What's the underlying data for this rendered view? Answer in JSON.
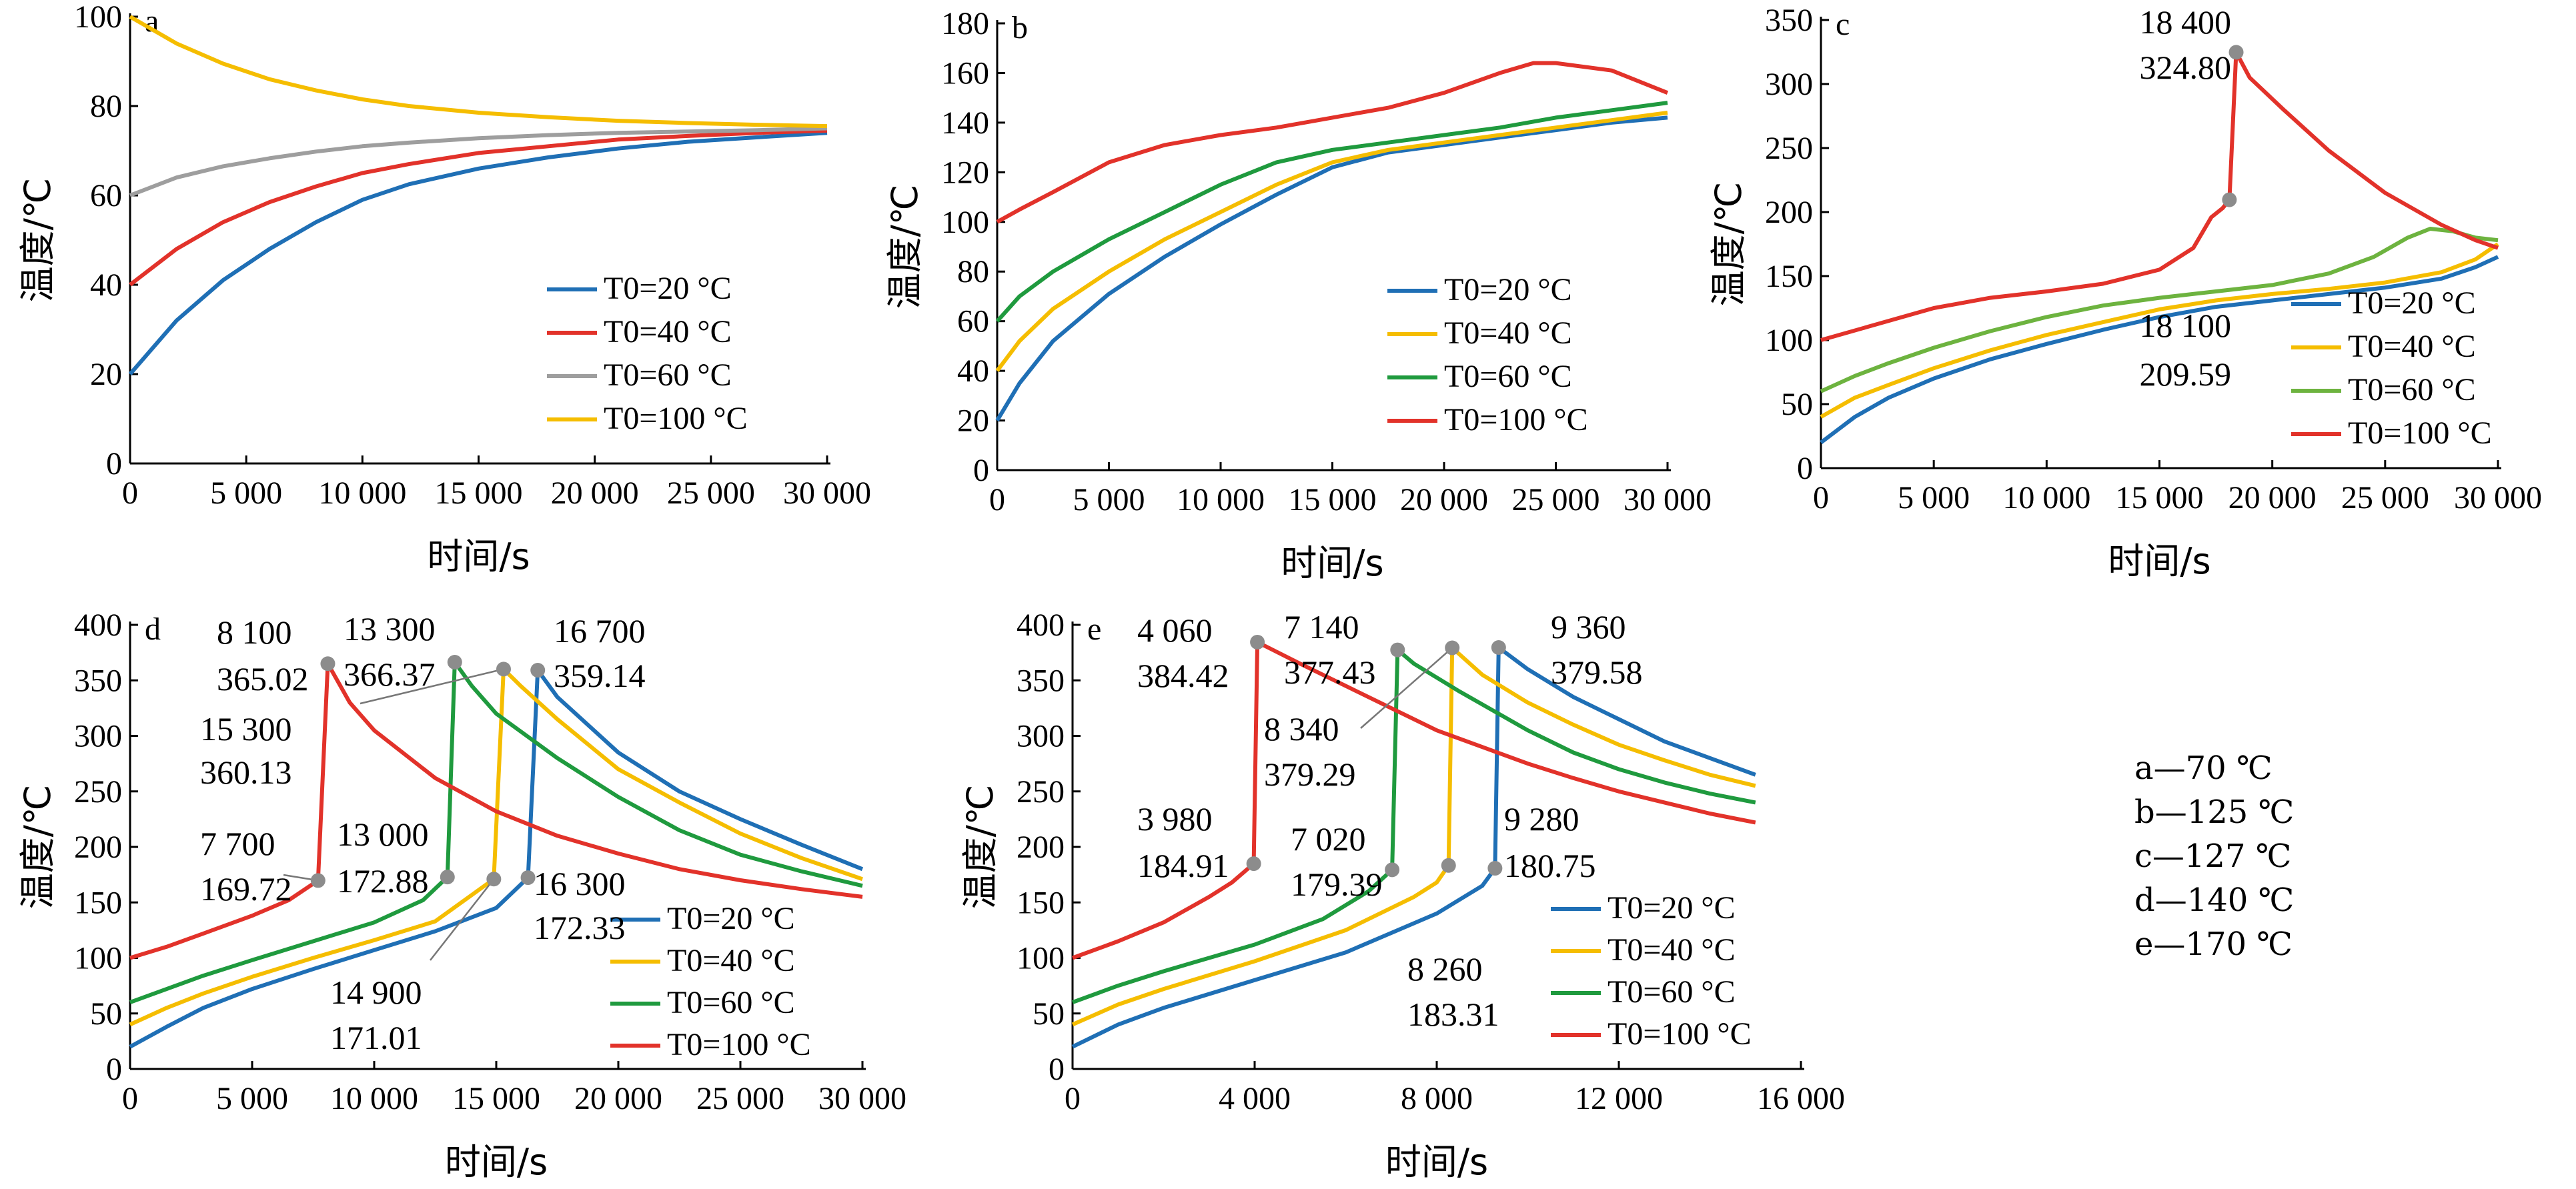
{
  "series_colors": [
    "#1f6fb5",
    "#f5bd00",
    "#1f9a3e",
    "#e2322a"
  ],
  "series_colors_a": [
    "#1f6fb5",
    "#e2322a",
    "#9e9e9e",
    "#f5bd00"
  ],
  "series_colors_c": [
    "#1f6fb5",
    "#f5bd00",
    "#6db33f",
    "#e2322a"
  ],
  "key_entries": [
    "a—70 ℃",
    "b—125 ℃",
    "c—127 ℃",
    "d—140 ℃",
    "e—170 ℃"
  ],
  "chart_data": [
    {
      "type": "line",
      "panel_label": "a",
      "xlabel": "时间/s",
      "ylabel": "温度/℃",
      "xlim": [
        0,
        30000
      ],
      "ylim": [
        0,
        100
      ],
      "xticks": [
        0,
        5000,
        10000,
        15000,
        20000,
        25000,
        30000
      ],
      "xtick_labels": [
        "0",
        "5 000",
        "10 000",
        "15 000",
        "20 000",
        "25 000",
        "30 000"
      ],
      "yticks": [
        0,
        20,
        40,
        60,
        80,
        100
      ],
      "ytick_labels": [
        "0",
        "20",
        "40",
        "60",
        "80",
        "100"
      ],
      "series": [
        {
          "name": "T0=20 °C",
          "x": [
            0,
            2000,
            4000,
            6000,
            8000,
            10000,
            12000,
            15000,
            18000,
            21000,
            24000,
            27000,
            30000
          ],
          "y": [
            20,
            32,
            41,
            48,
            54,
            59,
            62.5,
            66,
            68.5,
            70.5,
            72,
            73,
            74
          ]
        },
        {
          "name": "T0=40 °C",
          "x": [
            0,
            2000,
            4000,
            6000,
            8000,
            10000,
            12000,
            15000,
            18000,
            21000,
            24000,
            27000,
            30000
          ],
          "y": [
            40,
            48,
            54,
            58.5,
            62,
            65,
            67,
            69.5,
            71,
            72.5,
            73.3,
            74,
            74.5
          ]
        },
        {
          "name": "T0=60 °C",
          "x": [
            0,
            2000,
            4000,
            6000,
            8000,
            10000,
            12000,
            15000,
            18000,
            21000,
            24000,
            27000,
            30000
          ],
          "y": [
            60,
            64,
            66.5,
            68.3,
            69.8,
            71,
            71.8,
            72.8,
            73.5,
            74,
            74.3,
            74.6,
            75
          ]
        },
        {
          "name": "T0=100 °C",
          "x": [
            0,
            2000,
            4000,
            6000,
            8000,
            10000,
            12000,
            15000,
            18000,
            21000,
            24000,
            27000,
            30000
          ],
          "y": [
            100,
            94,
            89.5,
            86,
            83.5,
            81.5,
            80,
            78.5,
            77.5,
            76.7,
            76.2,
            75.8,
            75.5
          ]
        }
      ]
    },
    {
      "type": "line",
      "panel_label": "b",
      "xlabel": "时间/s",
      "ylabel": "温度/℃",
      "xlim": [
        0,
        30000
      ],
      "ylim": [
        0,
        180
      ],
      "xticks": [
        0,
        5000,
        10000,
        15000,
        20000,
        25000,
        30000
      ],
      "xtick_labels": [
        "0",
        "5 000",
        "10 000",
        "15 000",
        "20 000",
        "25 000",
        "30 000"
      ],
      "yticks": [
        0,
        20,
        40,
        60,
        80,
        100,
        120,
        140,
        160,
        180
      ],
      "ytick_labels": [
        "0",
        "20",
        "40",
        "60",
        "80",
        "100",
        "120",
        "140",
        "160",
        "180"
      ],
      "series": [
        {
          "name": "T0=20 °C",
          "x": [
            0,
            1000,
            2500,
            5000,
            7500,
            10000,
            12500,
            15000,
            17500,
            20000,
            22500,
            25000,
            27500,
            30000
          ],
          "y": [
            20,
            35,
            52,
            71,
            86,
            99,
            111,
            122,
            128,
            131,
            134,
            137,
            140,
            142
          ]
        },
        {
          "name": "T0=40 °C",
          "x": [
            0,
            1000,
            2500,
            5000,
            7500,
            10000,
            12500,
            15000,
            17500,
            20000,
            22500,
            25000,
            27500,
            30000
          ],
          "y": [
            40,
            52,
            65,
            80,
            93,
            104,
            115,
            124,
            129,
            132,
            135,
            138,
            141,
            144
          ]
        },
        {
          "name": "T0=60 °C",
          "x": [
            0,
            1000,
            2500,
            5000,
            7500,
            10000,
            12500,
            15000,
            17500,
            20000,
            22500,
            25000,
            27500,
            30000
          ],
          "y": [
            60,
            70,
            80,
            93,
            104,
            115,
            124,
            129,
            132,
            135,
            138,
            142,
            145,
            148
          ]
        },
        {
          "name": "T0=100 °C",
          "x": [
            0,
            1000,
            2500,
            5000,
            7500,
            10000,
            12500,
            15000,
            17500,
            20000,
            22500,
            24000,
            25000,
            27500,
            30000
          ],
          "y": [
            100,
            105,
            112,
            124,
            131,
            135,
            138,
            142,
            146,
            152,
            160,
            164,
            164,
            161,
            152
          ]
        }
      ]
    },
    {
      "type": "line",
      "panel_label": "c",
      "xlabel": "时间/s",
      "ylabel": "温度/℃",
      "xlim": [
        0,
        30000
      ],
      "ylim": [
        0,
        350
      ],
      "xticks": [
        0,
        5000,
        10000,
        15000,
        20000,
        25000,
        30000
      ],
      "xtick_labels": [
        "0",
        "5 000",
        "10 000",
        "15 000",
        "20 000",
        "25 000",
        "30 000"
      ],
      "yticks": [
        0,
        50,
        100,
        150,
        200,
        250,
        300,
        350
      ],
      "ytick_labels": [
        "0",
        "50",
        "100",
        "150",
        "200",
        "250",
        "300",
        "350"
      ],
      "series": [
        {
          "name": "T0=20 °C",
          "x": [
            0,
            1500,
            3000,
            5000,
            7500,
            10000,
            12500,
            15000,
            17500,
            20000,
            22500,
            25000,
            27500,
            29000,
            30000
          ],
          "y": [
            20,
            40,
            55,
            70,
            85,
            97,
            108,
            118,
            126,
            131,
            136,
            141,
            148,
            157,
            165
          ]
        },
        {
          "name": "T0=40 °C",
          "x": [
            0,
            1500,
            3000,
            5000,
            7500,
            10000,
            12500,
            15000,
            17500,
            20000,
            22500,
            25000,
            27500,
            29000,
            30000
          ],
          "y": [
            40,
            55,
            65,
            78,
            92,
            104,
            114,
            124,
            131,
            136,
            140,
            145,
            153,
            163,
            175
          ]
        },
        {
          "name": "T0=60 °C",
          "x": [
            0,
            1500,
            3000,
            5000,
            7500,
            10000,
            12500,
            15000,
            17500,
            20000,
            22500,
            24500,
            26000,
            27000,
            28000,
            29000,
            30000
          ],
          "y": [
            60,
            72,
            82,
            94,
            107,
            118,
            127,
            133,
            138,
            143,
            152,
            165,
            180,
            187,
            185,
            180,
            178
          ]
        },
        {
          "name": "T0=100 °C",
          "x": [
            0,
            2000,
            5000,
            7500,
            10000,
            12500,
            15000,
            16500,
            17300,
            17800,
            18100,
            18400,
            19000,
            20500,
            22500,
            25000,
            27500,
            29000,
            30000
          ],
          "y": [
            100,
            110,
            125,
            133,
            138,
            144,
            155,
            172,
            196,
            203,
            209.59,
            324.8,
            305,
            280,
            248,
            215,
            190,
            178,
            172
          ]
        }
      ],
      "annotations": [
        {
          "x": 18100,
          "y": 209.59,
          "label_time": "18 100",
          "label_value": "209.59"
        },
        {
          "x": 18400,
          "y": 324.8,
          "label_time": "18 400",
          "label_value": "324.80"
        }
      ]
    },
    {
      "type": "line",
      "panel_label": "d",
      "xlabel": "时间/s",
      "ylabel": "温度/℃",
      "xlim": [
        0,
        30000
      ],
      "ylim": [
        0,
        400
      ],
      "xticks": [
        0,
        5000,
        10000,
        15000,
        20000,
        25000,
        30000
      ],
      "xtick_labels": [
        "0",
        "5 000",
        "10 000",
        "15 000",
        "20 000",
        "25 000",
        "30 000"
      ],
      "yticks": [
        0,
        50,
        100,
        150,
        200,
        250,
        300,
        350,
        400
      ],
      "ytick_labels": [
        "0",
        "50",
        "100",
        "150",
        "200",
        "250",
        "300",
        "350",
        "400"
      ],
      "series": [
        {
          "name": "T0=20 °C",
          "x": [
            0,
            1500,
            3000,
            5000,
            7500,
            10000,
            12500,
            15000,
            16300,
            16700,
            17500,
            20000,
            22500,
            25000,
            27500,
            30000
          ],
          "y": [
            20,
            38,
            55,
            72,
            90,
            107,
            124,
            145,
            172.33,
            359.14,
            335,
            285,
            250,
            225,
            202,
            180
          ]
        },
        {
          "name": "T0=40 °C",
          "x": [
            0,
            1500,
            3000,
            5000,
            7500,
            10000,
            12500,
            14900,
            15300,
            16000,
            17500,
            20000,
            22500,
            25000,
            27500,
            30000
          ],
          "y": [
            40,
            55,
            68,
            83,
            100,
            116,
            133,
            171.01,
            360.13,
            345,
            315,
            270,
            240,
            212,
            190,
            171
          ]
        },
        {
          "name": "T0=60 °C",
          "x": [
            0,
            1500,
            3000,
            5000,
            7500,
            10000,
            12000,
            13000,
            13300,
            14000,
            15000,
            17500,
            20000,
            22500,
            25000,
            27500,
            30000
          ],
          "y": [
            60,
            72,
            84,
            98,
            115,
            132,
            152,
            172.88,
            366.37,
            345,
            320,
            280,
            245,
            215,
            193,
            178,
            165
          ]
        },
        {
          "name": "T0=100 °C",
          "x": [
            0,
            1500,
            3000,
            5000,
            6500,
            7700,
            8100,
            9000,
            10000,
            12500,
            15000,
            17500,
            20000,
            22500,
            25000,
            27500,
            30000
          ],
          "y": [
            100,
            110,
            122,
            138,
            152,
            169.72,
            365.02,
            330,
            305,
            262,
            232,
            210,
            194,
            180,
            170,
            162,
            155
          ]
        }
      ],
      "annotations": [
        {
          "x": 8100,
          "y": 365.02,
          "label_time": "8 100",
          "label_value": "365.02"
        },
        {
          "x": 13300,
          "y": 366.37,
          "label_time": "13 300",
          "label_value": "366.37"
        },
        {
          "x": 16700,
          "y": 359.14,
          "label_time": "16 700",
          "label_value": "359.14"
        },
        {
          "x": 15300,
          "y": 360.13,
          "label_time": "15 300",
          "label_value": "360.13"
        },
        {
          "x": 7700,
          "y": 169.72,
          "label_time": "7 700",
          "label_value": "169.72"
        },
        {
          "x": 13000,
          "y": 172.88,
          "label_time": "13 000",
          "label_value": "172.88"
        },
        {
          "x": 16300,
          "y": 172.33,
          "label_time": "16 300",
          "label_value": "172.33"
        },
        {
          "x": 14900,
          "y": 171.01,
          "label_time": "14 900",
          "label_value": "171.01"
        }
      ]
    },
    {
      "type": "line",
      "panel_label": "e",
      "xlabel": "时间/s",
      "ylabel": "温度/℃",
      "xlim": [
        0,
        16000
      ],
      "ylim": [
        0,
        400
      ],
      "xticks": [
        0,
        4000,
        8000,
        12000,
        16000
      ],
      "xtick_labels": [
        "0",
        "4 000",
        "8 000",
        "12 000",
        "16 000"
      ],
      "yticks": [
        0,
        50,
        100,
        150,
        200,
        250,
        300,
        350,
        400
      ],
      "ytick_labels": [
        "0",
        "50",
        "100",
        "150",
        "200",
        "250",
        "300",
        "350",
        "400"
      ],
      "series": [
        {
          "name": "T0=20 °C",
          "x": [
            0,
            1000,
            2000,
            4000,
            6000,
            8000,
            9000,
            9280,
            9360,
            10000,
            11000,
            12000,
            13000,
            14000,
            15000
          ],
          "y": [
            20,
            40,
            55,
            80,
            105,
            140,
            165,
            180.75,
            379.58,
            360,
            335,
            315,
            295,
            280,
            265
          ]
        },
        {
          "name": "T0=40 °C",
          "x": [
            0,
            1000,
            2000,
            4000,
            6000,
            7500,
            8000,
            8260,
            8340,
            9000,
            10000,
            11000,
            12000,
            13000,
            14000,
            15000
          ],
          "y": [
            40,
            58,
            72,
            97,
            125,
            155,
            168,
            183.31,
            379.29,
            355,
            330,
            310,
            292,
            278,
            265,
            255
          ]
        },
        {
          "name": "T0=60 °C",
          "x": [
            0,
            1000,
            2000,
            4000,
            5500,
            6500,
            7020,
            7140,
            7500,
            8500,
            10000,
            11000,
            12000,
            13000,
            14000,
            15000
          ],
          "y": [
            60,
            75,
            88,
            112,
            135,
            160,
            179.39,
            377.43,
            365,
            340,
            305,
            285,
            270,
            258,
            248,
            240
          ]
        },
        {
          "name": "T0=100 °C",
          "x": [
            0,
            1000,
            2000,
            3000,
            3500,
            3980,
            4060,
            5000,
            6000,
            7000,
            8000,
            9000,
            10000,
            11000,
            12000,
            13000,
            14000,
            15000
          ],
          "y": [
            100,
            115,
            132,
            155,
            168,
            184.91,
            384.42,
            365,
            345,
            325,
            305,
            290,
            275,
            262,
            250,
            240,
            230,
            222
          ]
        }
      ],
      "annotations": [
        {
          "x": 4060,
          "y": 384.42,
          "label_time": "4 060",
          "label_value": "384.42"
        },
        {
          "x": 7140,
          "y": 377.43,
          "label_time": "7 140",
          "label_value": "377.43"
        },
        {
          "x": 9360,
          "y": 379.58,
          "label_time": "9 360",
          "label_value": "379.58"
        },
        {
          "x": 8340,
          "y": 379.29,
          "label_time": "8 340",
          "label_value": "379.29"
        },
        {
          "x": 3980,
          "y": 184.91,
          "label_time": "3 980",
          "label_value": "184.91"
        },
        {
          "x": 7020,
          "y": 179.39,
          "label_time": "7 020",
          "label_value": "179.39"
        },
        {
          "x": 9280,
          "y": 180.75,
          "label_time": "9 280",
          "label_value": "180.75"
        },
        {
          "x": 8260,
          "y": 183.31,
          "label_time": "8 260",
          "label_value": "183.31"
        }
      ]
    }
  ]
}
